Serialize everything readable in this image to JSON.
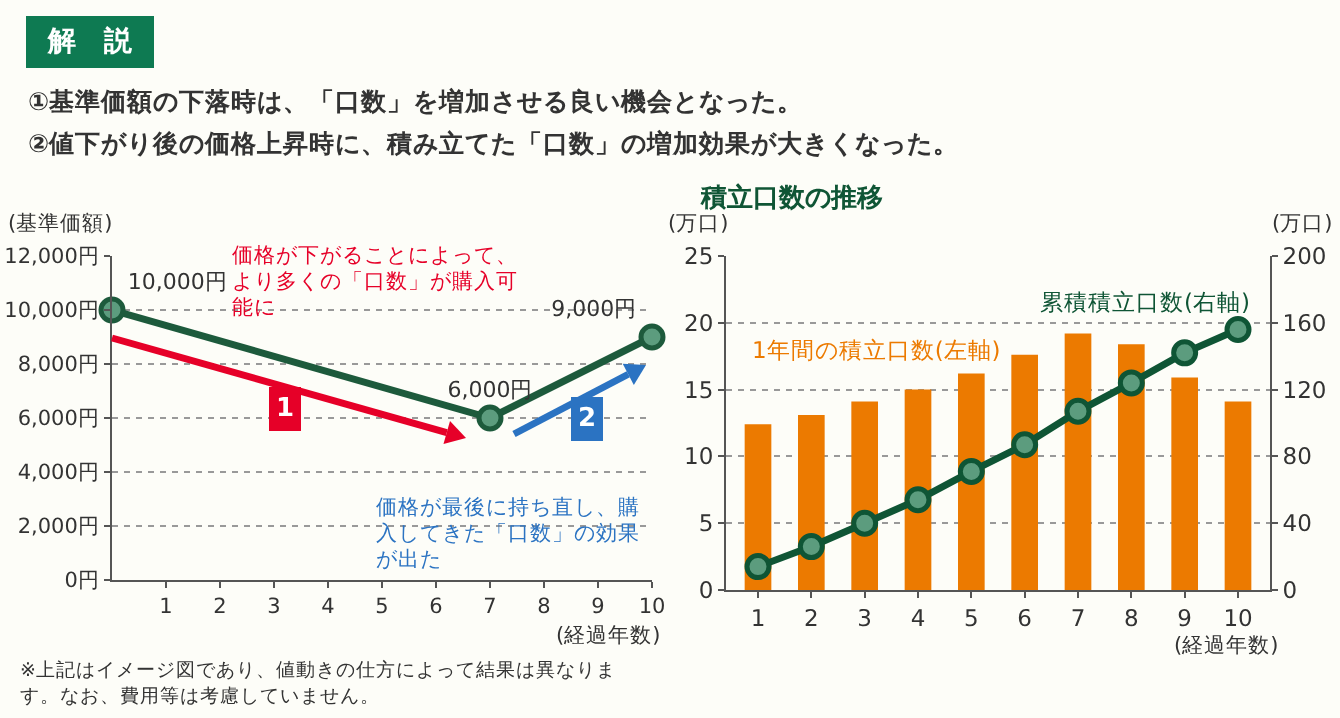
{
  "chart_data": [
    {
      "type": "line",
      "title": "解　説",
      "subtitle": "①基準価額の下落時は、「口数」を増加させる良い機会となった。\n②値下がり後の価格上昇時に、積み立てた「口数」の増加効果が大きくなった。",
      "xlabel": "(経過年数)",
      "ylabel": "(基準価額)",
      "x": [
        0,
        7,
        10
      ],
      "series": [
        {
          "color": "#1d5a3c",
          "values": [
            10000,
            6000,
            9000
          ],
          "value_labels": [
            "10,000円",
            "6,000円",
            "9,000円"
          ]
        }
      ],
      "xlim": [
        0,
        10
      ],
      "xticks": [
        1,
        2,
        3,
        4,
        5,
        6,
        7,
        8,
        9,
        10
      ],
      "ylim": [
        0,
        12000
      ],
      "yticks": [
        {
          "value": 0,
          "label": "0円"
        },
        {
          "value": 2000,
          "label": "2,000円"
        },
        {
          "value": 4000,
          "label": "4,000円"
        },
        {
          "value": 6000,
          "label": "6,000円"
        },
        {
          "value": 8000,
          "label": "8,000円"
        },
        {
          "value": 10000,
          "label": "10,000円"
        },
        {
          "value": 12000,
          "label": "12,000円"
        }
      ],
      "grid": "y",
      "legend": false,
      "marker": "circle",
      "line_style": "solid",
      "annotations": [
        "価格が下がることによって、より多くの「口数」が購入可能に",
        {
          "text": "1",
          "x": 3.2,
          "y": 6300
        },
        "価格が最後に持ち直し、購入してきた「口数」の効果が出た",
        {
          "text": "2",
          "x": 8.8,
          "y": 6000
        },
        "※上記はイメージ図であり、値動きの仕方によって結果は異なります。なお、費用等は考慮していません。"
      ]
    },
    {
      "type": "bar",
      "title": "積立口数の推移",
      "xlabel": "(経過年数)",
      "ylabel": "(万口)",
      "y2label": "(万口)",
      "categories": [
        "1",
        "2",
        "3",
        "4",
        "5",
        "6",
        "7",
        "8",
        "9",
        "10"
      ],
      "series": [
        {
          "name": "1年間の積立口数(左軸)",
          "color": "#ec7a00",
          "values": [
            12.4,
            13.1,
            14.1,
            15,
            16.2,
            17.6,
            19.2,
            18.4,
            15.9,
            14.1
          ]
        },
        {
          "name": "累積積立口数(右軸)",
          "type": "line",
          "axis": "y2",
          "color": "#0f5535",
          "values": [
            14,
            26,
            40,
            54,
            71,
            87,
            107,
            124,
            142,
            156
          ]
        }
      ],
      "ylim": [
        0,
        25
      ],
      "yticks": [
        0,
        5,
        10,
        15,
        20,
        25
      ],
      "y2lim": [
        0,
        200
      ],
      "y2ticks": [
        0,
        40,
        80,
        120,
        160,
        200
      ],
      "grid": "y",
      "legend": false,
      "marker": "circle",
      "line_style": "solid"
    }
  ]
}
